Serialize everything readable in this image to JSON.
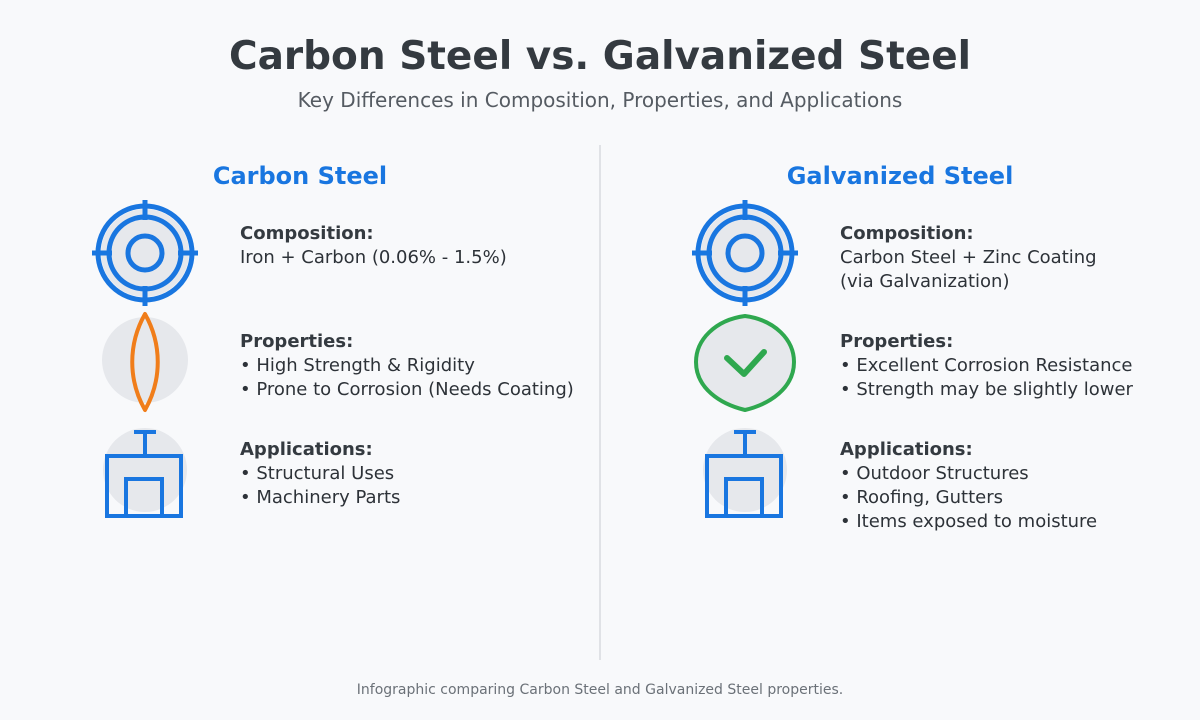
{
  "header": {
    "title": "Carbon Steel vs. Galvanized Steel",
    "subtitle": "Key Differences in Composition, Properties, and Applications"
  },
  "columns": [
    {
      "heading": "Carbon Steel",
      "composition": {
        "label": "Composition:",
        "lines": [
          "Iron + Carbon (0.06% - 1.5%)"
        ]
      },
      "properties": {
        "label": "Properties:",
        "lines": [
          "• High Strength & Rigidity",
          "• Prone to Corrosion (Needs Coating)"
        ]
      },
      "applications": {
        "label": "Applications:",
        "lines": [
          "• Structural Uses",
          "• Machinery Parts"
        ]
      },
      "icons": [
        "steel-section-icon",
        "flame-icon",
        "building-icon"
      ]
    },
    {
      "heading": "Galvanized Steel",
      "composition": {
        "label": "Composition:",
        "lines": [
          "Carbon Steel + Zinc Coating",
          "(via Galvanization)"
        ]
      },
      "properties": {
        "label": "Properties:",
        "lines": [
          "• Excellent Corrosion Resistance",
          "• Strength may be slightly lower"
        ]
      },
      "applications": {
        "label": "Applications:",
        "lines": [
          "• Outdoor Structures",
          "• Roofing, Gutters",
          "• Items exposed to moisture"
        ]
      },
      "icons": [
        "steel-section-icon",
        "checkmark-shield-icon",
        "building-icon"
      ]
    }
  ],
  "footer": "Infographic comparing Carbon Steel and Galvanized Steel properties.",
  "colors": {
    "accent_blue": "#1976e0",
    "flame_orange": "#f07d1a",
    "check_green": "#2fa84f",
    "icon_bg": "#e6e8ec"
  }
}
